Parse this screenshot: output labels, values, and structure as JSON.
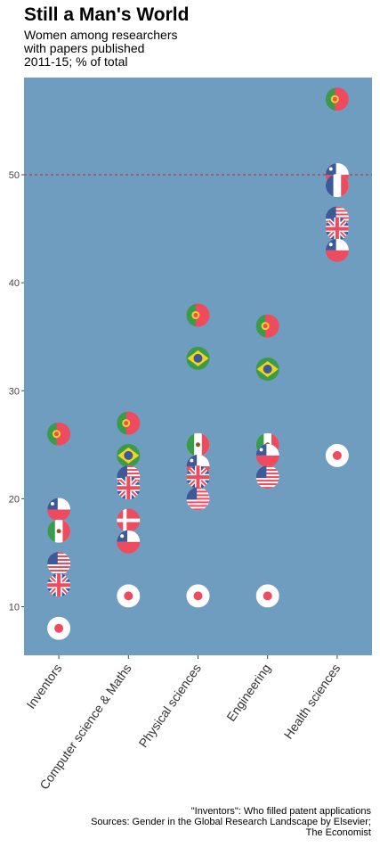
{
  "title": "Still a Man's World",
  "subtitle": [
    "Women among researchers",
    "with papers published",
    "2011-15; % of total"
  ],
  "caption": [
    "\"Inventors\": Who filled patent applications",
    "Sources: Gender in the Global Research Landscape by Elsevier;",
    "The Economist"
  ],
  "colors": {
    "panel": "#6F9DC0",
    "reference_line": "#CC2222",
    "flag_red": "#EF4B5E",
    "flag_white": "#FFFFFF",
    "flag_blue": "#3C5A9A",
    "flag_green": "#3A9B4A",
    "flag_yellow": "#F5D322"
  },
  "chart_data": {
    "type": "scatter",
    "categories": [
      "Inventors",
      "Computer science & Maths",
      "Physical sciences",
      "Engineering",
      "Health sciences"
    ],
    "ylim": [
      5.5,
      59
    ],
    "yticks": [
      10,
      20,
      30,
      40,
      50
    ],
    "reference_line": 50,
    "grid": false,
    "points": [
      {
        "category": "Inventors",
        "country": "Portugal",
        "value": 26
      },
      {
        "category": "Inventors",
        "country": "Chile",
        "value": 19
      },
      {
        "category": "Inventors",
        "country": "Mexico",
        "value": 17
      },
      {
        "category": "Inventors",
        "country": "United States",
        "value": 14
      },
      {
        "category": "Inventors",
        "country": "United Kingdom",
        "value": 12
      },
      {
        "category": "Inventors",
        "country": "Japan",
        "value": 8
      },
      {
        "category": "Computer science & Maths",
        "country": "Portugal",
        "value": 27
      },
      {
        "category": "Computer science & Maths",
        "country": "Brazil",
        "value": 24
      },
      {
        "category": "Computer science & Maths",
        "country": "United States",
        "value": 22
      },
      {
        "category": "Computer science & Maths",
        "country": "United Kingdom",
        "value": 21
      },
      {
        "category": "Computer science & Maths",
        "country": "Denmark",
        "value": 18
      },
      {
        "category": "Computer science & Maths",
        "country": "Chile",
        "value": 16
      },
      {
        "category": "Computer science & Maths",
        "country": "Japan",
        "value": 11
      },
      {
        "category": "Physical sciences",
        "country": "Portugal",
        "value": 37
      },
      {
        "category": "Physical sciences",
        "country": "Brazil",
        "value": 33
      },
      {
        "category": "Physical sciences",
        "country": "Mexico",
        "value": 25
      },
      {
        "category": "Physical sciences",
        "country": "Chile",
        "value": 23
      },
      {
        "category": "Physical sciences",
        "country": "United Kingdom",
        "value": 22
      },
      {
        "category": "Physical sciences",
        "country": "United States",
        "value": 20
      },
      {
        "category": "Physical sciences",
        "country": "Japan",
        "value": 11
      },
      {
        "category": "Engineering",
        "country": "Portugal",
        "value": 36
      },
      {
        "category": "Engineering",
        "country": "Brazil",
        "value": 32
      },
      {
        "category": "Engineering",
        "country": "Mexico",
        "value": 25
      },
      {
        "category": "Engineering",
        "country": "Chile",
        "value": 24
      },
      {
        "category": "Engineering",
        "country": "United States",
        "value": 22
      },
      {
        "category": "Engineering",
        "country": "Japan",
        "value": 11
      },
      {
        "category": "Health sciences",
        "country": "Portugal",
        "value": 57
      },
      {
        "category": "Health sciences",
        "country": "Chile",
        "value": 50
      },
      {
        "category": "Health sciences",
        "country": "France",
        "value": 49
      },
      {
        "category": "Health sciences",
        "country": "United States",
        "value": 46
      },
      {
        "category": "Health sciences",
        "country": "United Kingdom",
        "value": 45
      },
      {
        "category": "Health sciences",
        "country": "Chile",
        "value": 43
      },
      {
        "category": "Health sciences",
        "country": "Japan",
        "value": 24
      }
    ]
  }
}
